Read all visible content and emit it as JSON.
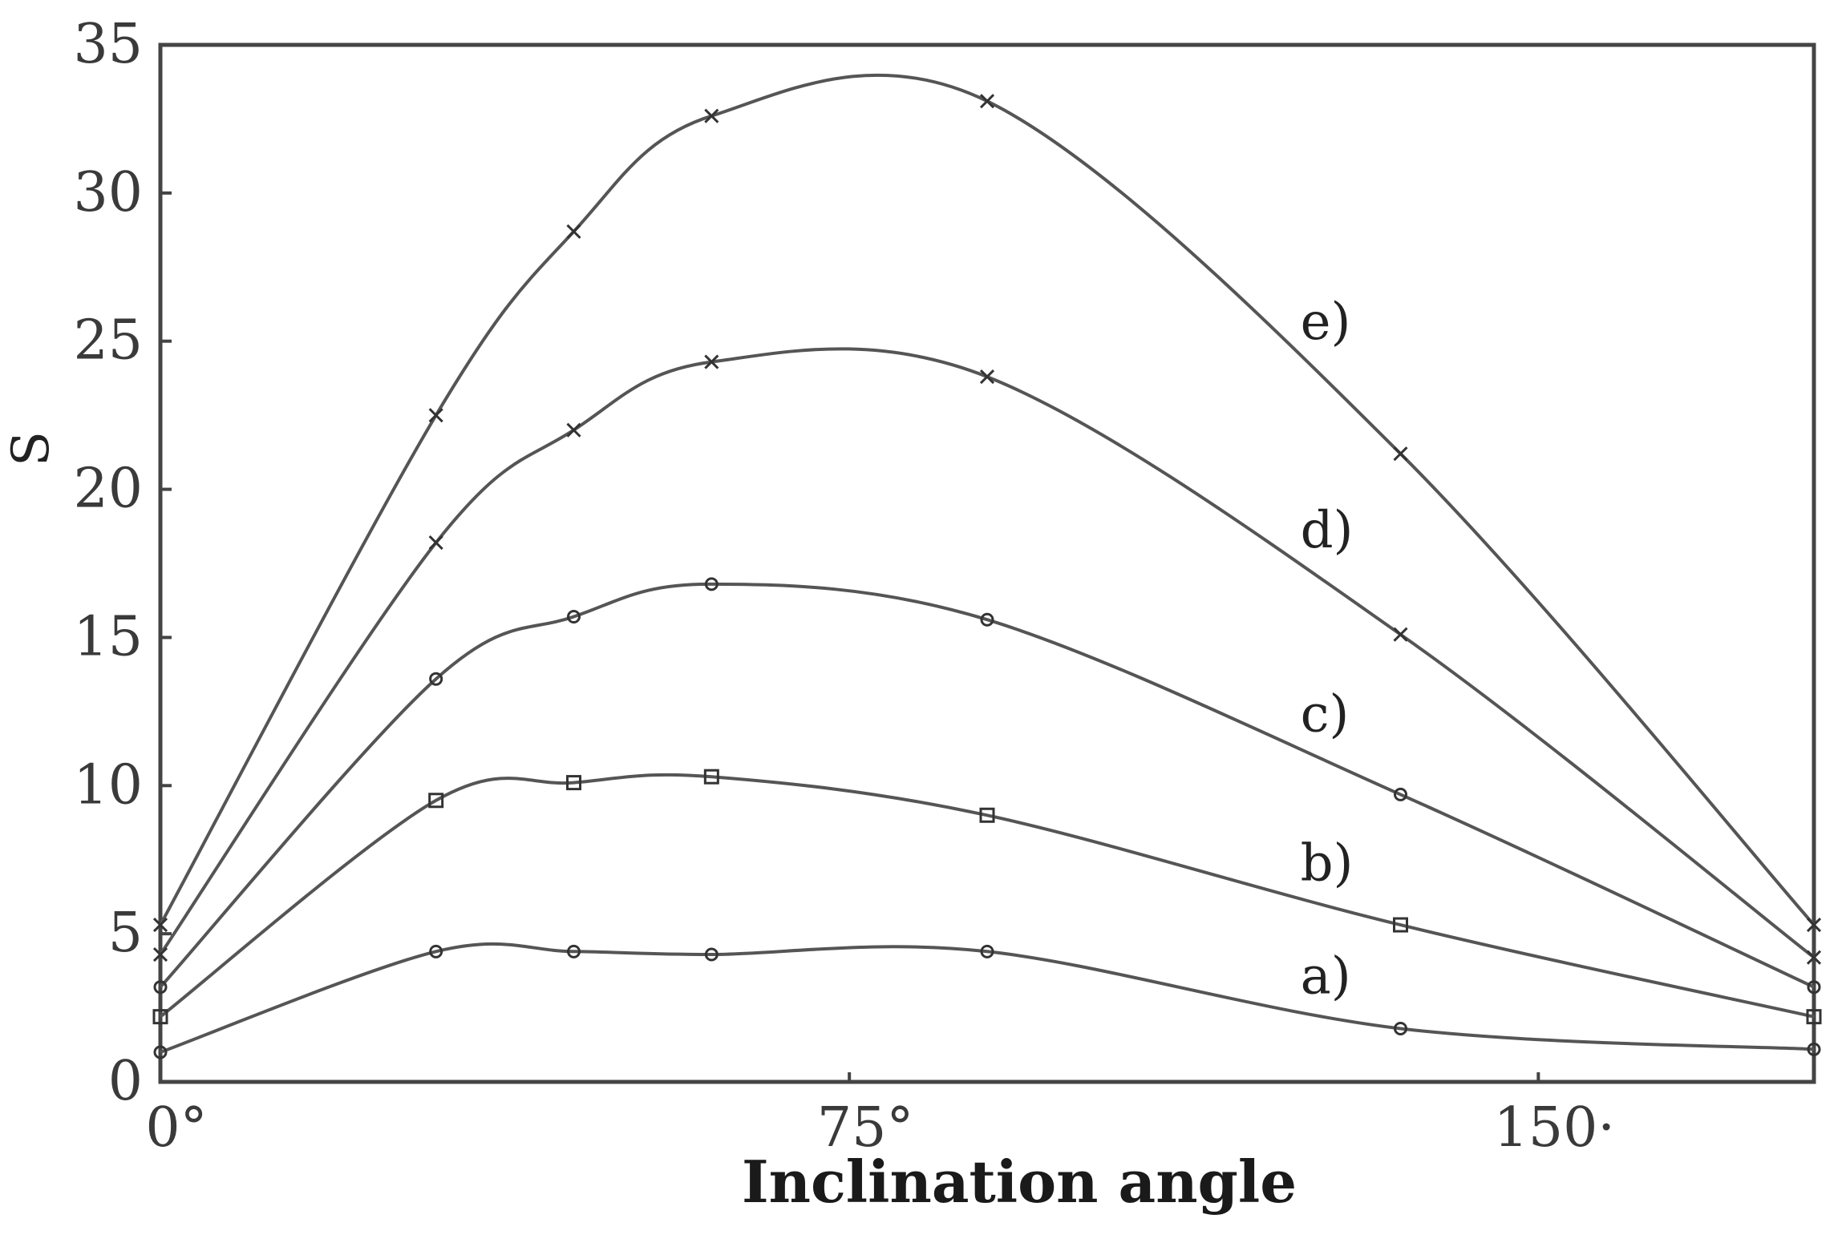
{
  "chart_data": {
    "type": "line",
    "title": "",
    "xlabel": "Inclination angle",
    "ylabel": "S",
    "xlim": [
      0,
      180
    ],
    "ylim": [
      0,
      35
    ],
    "x_ticks": [
      {
        "value": 0,
        "label": "0°"
      },
      {
        "value": 75,
        "label": "75°"
      },
      {
        "value": 150,
        "label": "150·"
      }
    ],
    "y_ticks": [
      0,
      5,
      10,
      15,
      20,
      25,
      30,
      35
    ],
    "grid": false,
    "legend": "inline labels at right of curves",
    "x": [
      0,
      30,
      45,
      60,
      90,
      135,
      180
    ],
    "series": [
      {
        "name": "a)",
        "values": [
          1.0,
          4.4,
          4.4,
          4.3,
          4.4,
          1.8,
          1.1
        ]
      },
      {
        "name": "b)",
        "values": [
          2.2,
          9.5,
          10.1,
          10.3,
          9.0,
          5.3,
          2.2
        ]
      },
      {
        "name": "c)",
        "values": [
          3.2,
          13.6,
          15.7,
          16.8,
          15.6,
          9.7,
          3.2
        ]
      },
      {
        "name": "d)",
        "values": [
          4.3,
          18.2,
          22.0,
          24.3,
          23.8,
          15.1,
          4.2
        ]
      },
      {
        "name": "e)",
        "values": [
          5.3,
          22.5,
          28.7,
          32.6,
          33.1,
          21.2,
          5.3
        ]
      }
    ]
  }
}
